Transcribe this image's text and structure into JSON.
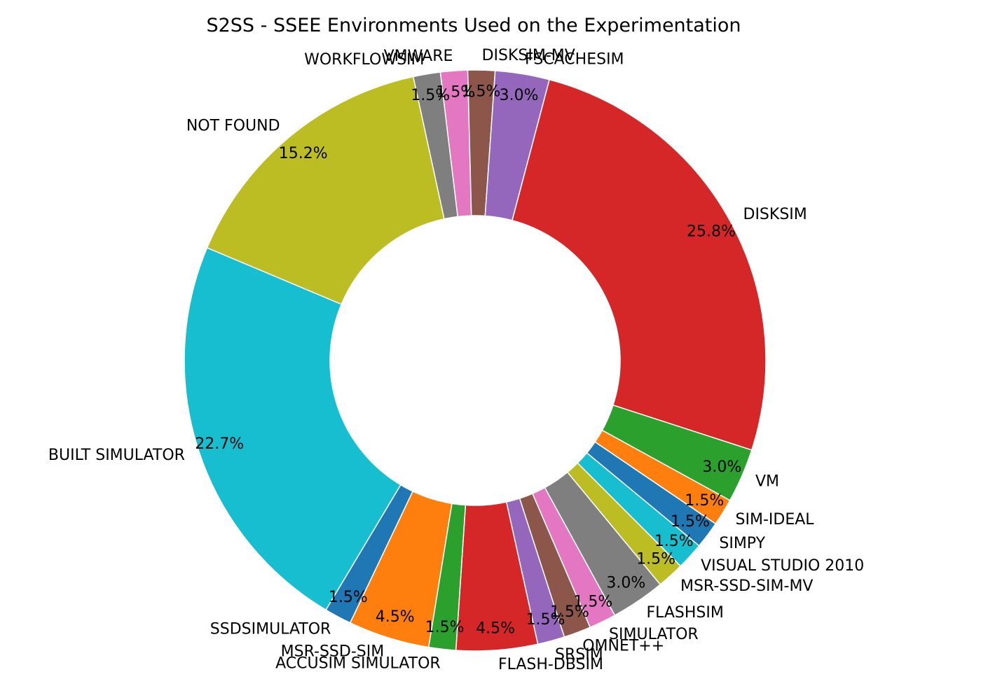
{
  "chart_data": {
    "type": "pie",
    "title": "S2SS - SSEE Environments Used on the Experimentation",
    "slices": [
      {
        "label": "DISKSIM",
        "pct_text": "25.8%",
        "value": 25.8,
        "color": "#d62728"
      },
      {
        "label": "VM",
        "pct_text": "3.0%",
        "value": 3.0,
        "color": "#2ca02c"
      },
      {
        "label": "SIM-IDEAL",
        "pct_text": "1.5%",
        "value": 1.5,
        "color": "#ff7f0e"
      },
      {
        "label": "SIMPY",
        "pct_text": "1.5%",
        "value": 1.5,
        "color": "#1f77b4"
      },
      {
        "label": "VISUAL STUDIO 2010",
        "pct_text": "1.5%",
        "value": 1.5,
        "color": "#17becf"
      },
      {
        "label": "MSR-SSD-SIM-MV",
        "pct_text": "1.5%",
        "value": 1.5,
        "color": "#bcbd22"
      },
      {
        "label": "FLASHSIM",
        "pct_text": "3.0%",
        "value": 3.0,
        "color": "#7f7f7f"
      },
      {
        "label": "SIMULATOR",
        "pct_text": "1.5%",
        "value": 1.5,
        "color": "#e377c2"
      },
      {
        "label": "OMNET++",
        "pct_text": "1.5%",
        "value": 1.5,
        "color": "#8c564b"
      },
      {
        "label": "SRSIM",
        "pct_text": "1.5%",
        "value": 1.5,
        "color": "#9467bd"
      },
      {
        "label": "FLASH-DBSIM",
        "pct_text": "4.5%",
        "value": 4.5,
        "color": "#d62728"
      },
      {
        "label": "ACCUSIM SIMULATOR",
        "pct_text": "1.5%",
        "value": 1.5,
        "color": "#2ca02c"
      },
      {
        "label": "MSR-SSD-SIM",
        "pct_text": "4.5%",
        "value": 4.5,
        "color": "#ff7f0e"
      },
      {
        "label": "SSDSIMULATOR",
        "pct_text": "1.5%",
        "value": 1.5,
        "color": "#1f77b4"
      },
      {
        "label": "BUILT SIMULATOR",
        "pct_text": "22.7%",
        "value": 22.7,
        "color": "#17becf"
      },
      {
        "label": "NOT FOUND",
        "pct_text": "15.2%",
        "value": 15.2,
        "color": "#bcbd22"
      },
      {
        "label": "WORKFLOWSIM",
        "pct_text": "1.5%",
        "value": 1.5,
        "color": "#7f7f7f"
      },
      {
        "label": "VMWARE",
        "pct_text": "1.5%",
        "value": 1.5,
        "color": "#e377c2"
      },
      {
        "label": "DISKSIM-MV",
        "pct_text": "1.5%",
        "value": 1.5,
        "color": "#8c564b"
      },
      {
        "label": "FSCACHESIM",
        "pct_text": "3.0%",
        "value": 3.0,
        "color": "#9467bd"
      }
    ]
  }
}
